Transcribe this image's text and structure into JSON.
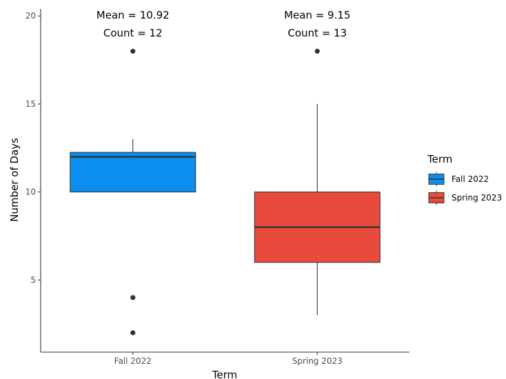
{
  "chart_data": {
    "type": "boxplot",
    "xlabel": "Term",
    "ylabel": "Number of Days",
    "ylim": [
      0.9,
      20.4
    ],
    "yticks": [
      5,
      10,
      15,
      20
    ],
    "categories": [
      "Fall 2022",
      "Spring 2023"
    ],
    "grid": false,
    "legend": {
      "title": "Term",
      "position": "right",
      "entries": [
        "Fall 2022",
        "Spring 2023"
      ]
    },
    "series": [
      {
        "name": "Fall 2022",
        "color": "#0b8ef0",
        "q1": 10,
        "median": 12,
        "q3": 12.25,
        "whisker_low": 10,
        "whisker_high": 13,
        "outliers": [
          18,
          4,
          2
        ],
        "mean_label": "Mean = 10.92",
        "count_label": "Count = 12"
      },
      {
        "name": "Spring 2023",
        "color": "#e84b3c",
        "q1": 6,
        "median": 8,
        "q3": 10,
        "whisker_low": 3,
        "whisker_high": 15,
        "outliers": [
          18
        ],
        "mean_label": "Mean = 9.15",
        "count_label": "Count = 13"
      }
    ]
  }
}
